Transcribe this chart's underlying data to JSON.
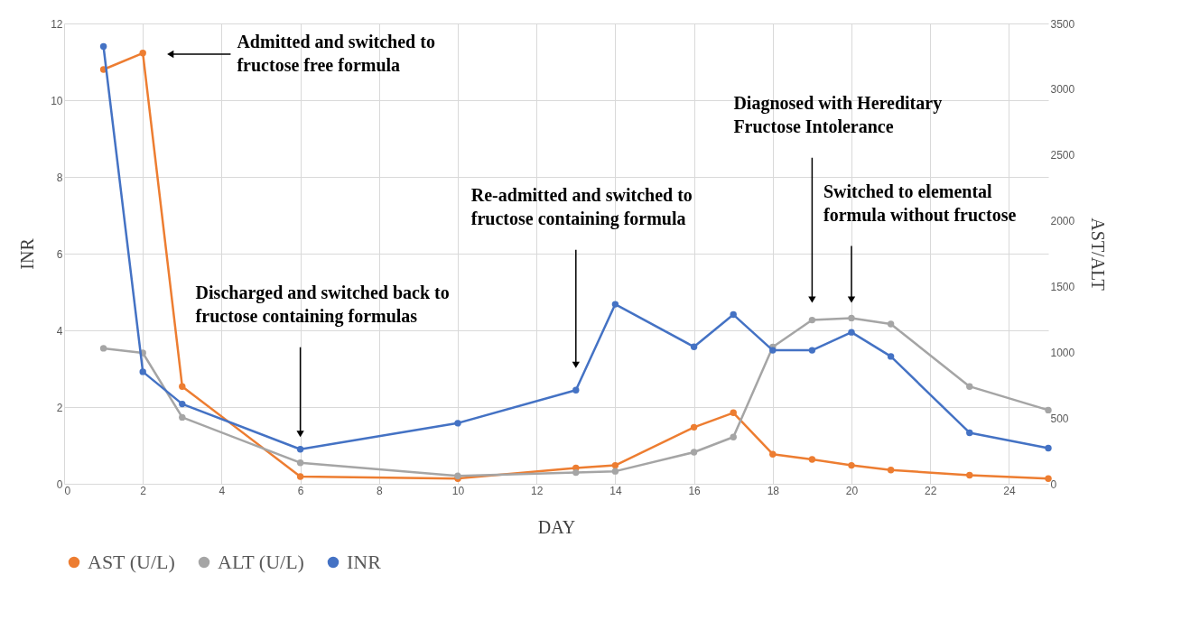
{
  "chart_data": {
    "type": "line",
    "xlabel": "DAY",
    "ylabel": "INR",
    "y2label": "AST/ALT",
    "x": [
      1,
      2,
      3,
      6,
      10,
      13,
      14,
      16,
      17,
      18,
      19,
      20,
      21,
      23,
      25
    ],
    "xlim": [
      0,
      25
    ],
    "xticks": [
      0,
      2,
      4,
      6,
      8,
      10,
      12,
      14,
      16,
      18,
      20,
      22,
      24
    ],
    "ylim": [
      0,
      12
    ],
    "yticks": [
      0,
      2,
      4,
      6,
      8,
      10,
      12
    ],
    "y2lim": [
      0,
      3500
    ],
    "y2ticks": [
      0,
      500,
      1000,
      1500,
      2000,
      2500,
      3000,
      3500
    ],
    "grid": true,
    "legend": "bottom",
    "marker": "circle",
    "line_style": "solid",
    "series": [
      {
        "name": "AST (U/L)",
        "color": "#ed7d31",
        "axis": "y2",
        "values": [
          3150,
          3275,
          740,
          55,
          40,
          120,
          140,
          430,
          540,
          225,
          185,
          140,
          105,
          65,
          40
        ]
      },
      {
        "name": "ALT (U/L)",
        "color": "#a5a5a5",
        "axis": "y2",
        "values": [
          1030,
          995,
          505,
          160,
          60,
          85,
          95,
          240,
          355,
          1040,
          1245,
          1260,
          1215,
          740,
          560
        ]
      },
      {
        "name": "INR",
        "color": "#4472c4",
        "values": [
          11.4,
          2.92,
          2.08,
          0.9,
          1.58,
          2.44,
          4.68,
          3.57,
          4.41,
          3.48,
          3.48,
          3.95,
          3.32,
          1.33,
          0.93
        ]
      }
    ],
    "annotations": [
      {
        "text": "Admitted and switched to fructose free formula",
        "x": 2.7,
        "y": 11.2
      },
      {
        "text": "Discharged and switched back to fructose containing formulas",
        "x": 6,
        "y": 1.3
      },
      {
        "text": "Re-admitted and switched to fructose containing formula",
        "x": 13,
        "y": 3.1
      },
      {
        "text": "Diagnosed with Hereditary Fructose Intolerance",
        "x": 19,
        "y": 4.8
      },
      {
        "text": "Switched to elemental formula without fructose",
        "x": 20,
        "y": 4.8
      }
    ]
  }
}
